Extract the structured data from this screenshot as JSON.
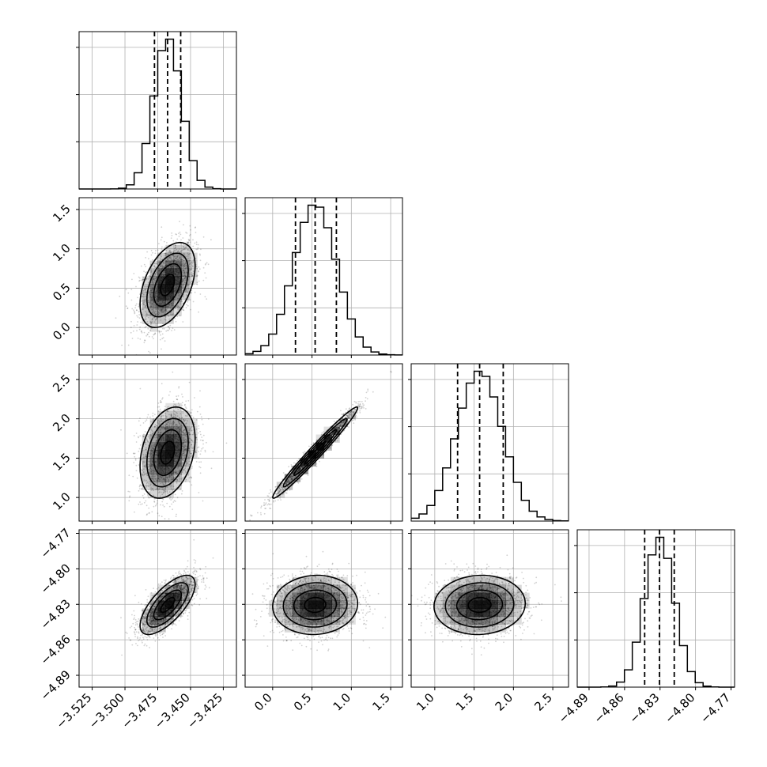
{
  "chart_data": {
    "type": "corner",
    "grid": true,
    "parameters": [
      {
        "center": -3.4675,
        "sigma": 0.0105,
        "range": [
          -3.535,
          -3.415
        ],
        "ticks": [
          -3.525,
          -3.5,
          -3.475,
          -3.45,
          -3.425
        ],
        "tick_labels": [
          "−3.525",
          "−3.500",
          "−3.475",
          "−3.450",
          "−3.425"
        ],
        "quantiles": [
          -3.4775,
          -3.4675,
          -3.4575
        ]
      },
      {
        "center": 0.54,
        "sigma": 0.27,
        "range": [
          -0.35,
          1.65
        ],
        "ticks": [
          0.0,
          0.5,
          1.0,
          1.5
        ],
        "tick_labels": [
          "0.0",
          "0.5",
          "1.0",
          "1.5"
        ],
        "quantiles": [
          0.29,
          0.54,
          0.81
        ]
      },
      {
        "center": 1.57,
        "sigma": 0.29,
        "range": [
          0.7,
          2.7
        ],
        "ticks": [
          1.0,
          1.5,
          2.0,
          2.5
        ],
        "tick_labels": [
          "1.0",
          "1.5",
          "2.0",
          "2.5"
        ],
        "quantiles": [
          1.29,
          1.57,
          1.87
        ]
      },
      {
        "center": -4.8305,
        "sigma": 0.0125,
        "range": [
          -4.9,
          -4.767
        ],
        "ticks": [
          -4.89,
          -4.86,
          -4.83,
          -4.8,
          -4.77
        ],
        "tick_labels": [
          "−4.89",
          "−4.86",
          "−4.83",
          "−4.80",
          "−4.77"
        ],
        "quantiles": [
          -4.843,
          -4.8305,
          -4.818
        ]
      }
    ],
    "correlations": {
      "1-0": 0.45,
      "2-0": 0.3,
      "2-1": 0.98,
      "3-0": 0.7,
      "3-1": 0.05,
      "3-2": 0.05
    }
  }
}
